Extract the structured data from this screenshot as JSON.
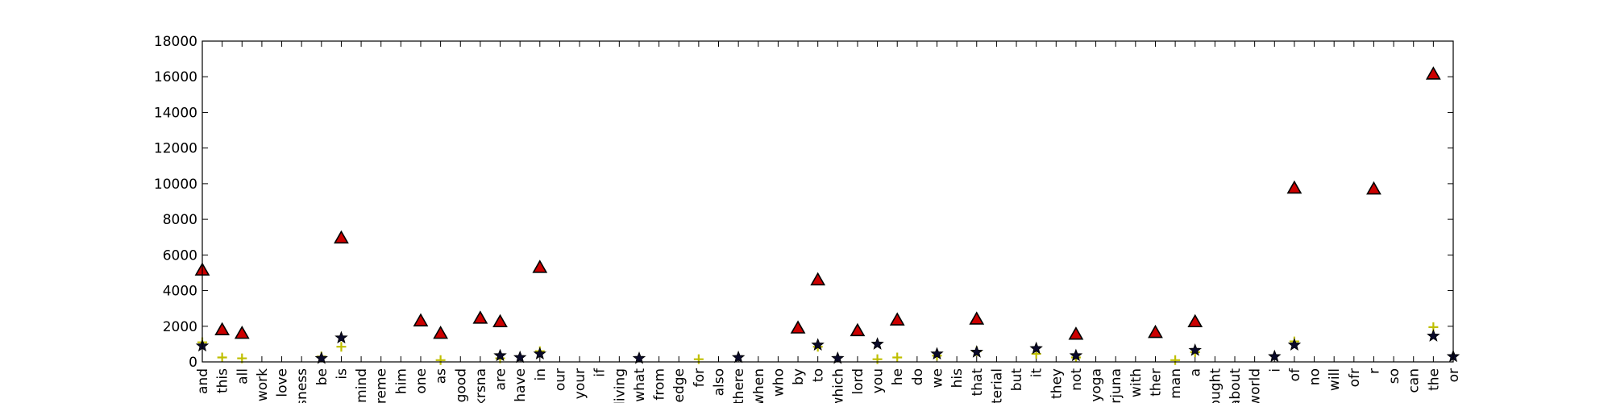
{
  "chart_data": {
    "type": "scatter",
    "title": "",
    "xlabel": "",
    "ylabel": "",
    "ylim": [
      0,
      18000
    ],
    "yticks": [
      0,
      2000,
      4000,
      6000,
      8000,
      10000,
      12000,
      14000,
      16000,
      18000
    ],
    "grid": false,
    "categories": [
      "and",
      "this",
      "all",
      "work",
      "love",
      "sness",
      "be",
      "is",
      "mind",
      "reme",
      "him",
      "one",
      "as",
      "good",
      "krsna",
      "are",
      "have",
      "in",
      "our",
      "your",
      "if",
      "living",
      "what",
      "from",
      "ledge",
      "for",
      "also",
      "there",
      "when",
      "who",
      "by",
      "to",
      "which",
      "lord",
      "you",
      "he",
      "do",
      "we",
      "his",
      "that",
      "terial",
      "but",
      "it",
      "they",
      "not",
      "yoga",
      "rjuna",
      "with",
      "ther",
      "man",
      "a",
      "ought",
      "about",
      "world",
      "i",
      "of",
      "no",
      "will",
      "ofr",
      "r",
      "so",
      "can",
      "the",
      "or"
    ],
    "series": [
      {
        "marker": "triangle",
        "color": "#cc0000",
        "points": [
          {
            "x": "and",
            "y": 5150
          },
          {
            "x": "this",
            "y": 1800
          },
          {
            "x": "all",
            "y": 1600
          },
          {
            "x": "is",
            "y": 6950
          },
          {
            "x": "one",
            "y": 2300
          },
          {
            "x": "as",
            "y": 1600
          },
          {
            "x": "krsna",
            "y": 2450
          },
          {
            "x": "are",
            "y": 2250
          },
          {
            "x": "in",
            "y": 5300
          },
          {
            "x": "by",
            "y": 1900
          },
          {
            "x": "to",
            "y": 4600
          },
          {
            "x": "lord",
            "y": 1750
          },
          {
            "x": "he",
            "y": 2350
          },
          {
            "x": "that",
            "y": 2400
          },
          {
            "x": "not",
            "y": 1550
          },
          {
            "x": "ther",
            "y": 1650
          },
          {
            "x": "a",
            "y": 2250
          },
          {
            "x": "of",
            "y": 9750
          },
          {
            "x": "r",
            "y": 9700
          },
          {
            "x": "the",
            "y": 16150
          }
        ]
      },
      {
        "marker": "plus",
        "color": "#bfbf00",
        "points": [
          {
            "x": "and",
            "y": 1100
          },
          {
            "x": "this",
            "y": 250
          },
          {
            "x": "all",
            "y": 200
          },
          {
            "x": "be",
            "y": 300
          },
          {
            "x": "is",
            "y": 850
          },
          {
            "x": "as",
            "y": 100
          },
          {
            "x": "are",
            "y": 200
          },
          {
            "x": "in",
            "y": 600
          },
          {
            "x": "for",
            "y": 150
          },
          {
            "x": "to",
            "y": 850
          },
          {
            "x": "you",
            "y": 150
          },
          {
            "x": "he",
            "y": 250
          },
          {
            "x": "we",
            "y": 350
          },
          {
            "x": "that",
            "y": 600
          },
          {
            "x": "it",
            "y": 450
          },
          {
            "x": "not",
            "y": 250
          },
          {
            "x": "man",
            "y": 100
          },
          {
            "x": "a",
            "y": 550
          },
          {
            "x": "of",
            "y": 1150
          },
          {
            "x": "the",
            "y": 1950
          }
        ]
      },
      {
        "marker": "star",
        "color": "#0a0a2a",
        "points": [
          {
            "x": "and",
            "y": 900
          },
          {
            "x": "be",
            "y": 200
          },
          {
            "x": "is",
            "y": 1350
          },
          {
            "x": "are",
            "y": 350
          },
          {
            "x": "have",
            "y": 250
          },
          {
            "x": "in",
            "y": 450
          },
          {
            "x": "what",
            "y": 200
          },
          {
            "x": "there",
            "y": 250
          },
          {
            "x": "to",
            "y": 950
          },
          {
            "x": "which",
            "y": 200
          },
          {
            "x": "you",
            "y": 1000
          },
          {
            "x": "we",
            "y": 450
          },
          {
            "x": "that",
            "y": 550
          },
          {
            "x": "it",
            "y": 750
          },
          {
            "x": "not",
            "y": 350
          },
          {
            "x": "a",
            "y": 650
          },
          {
            "x": "i",
            "y": 300
          },
          {
            "x": "of",
            "y": 950
          },
          {
            "x": "the",
            "y": 1450
          },
          {
            "x": "or",
            "y": 300
          }
        ]
      }
    ]
  }
}
